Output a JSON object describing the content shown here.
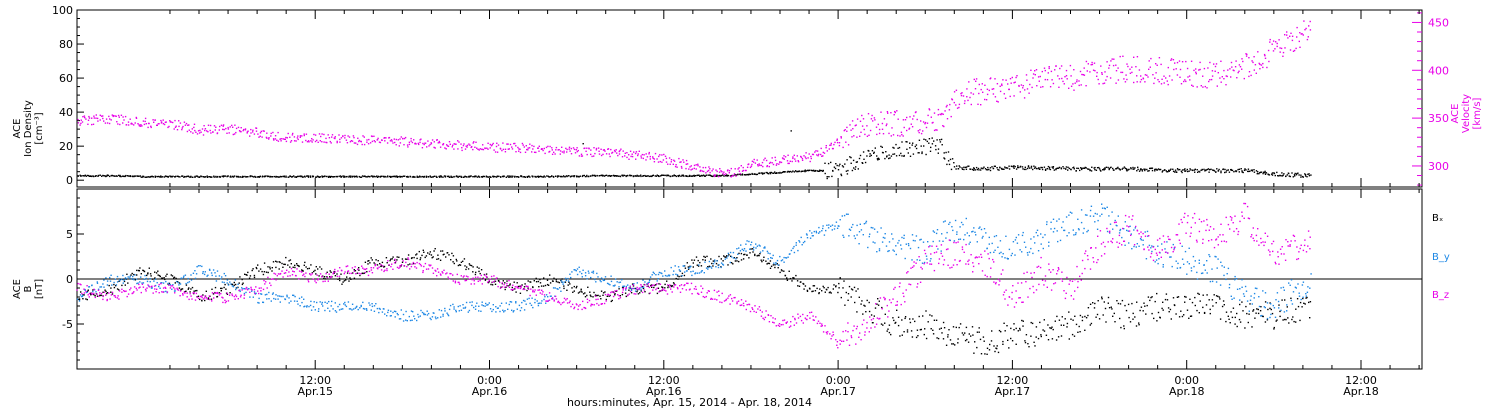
{
  "chart_data": [
    {
      "type": "scatter",
      "title": "",
      "x_axis": {
        "label": "hours:minutes, Apr. 15, 2014 - Apr. 18, 2014",
        "range_hours": [
          -4.4,
          88.2
        ],
        "ticks": [
          {
            "hours": 12,
            "time": "12:00",
            "date": "Apr.15"
          },
          {
            "hours": 24,
            "time": "0:00",
            "date": "Apr.16"
          },
          {
            "hours": 36,
            "time": "12:00",
            "date": "Apr.16"
          },
          {
            "hours": 48,
            "time": "0:00",
            "date": "Apr.17"
          },
          {
            "hours": 60,
            "time": "12:00",
            "date": "Apr.17"
          },
          {
            "hours": 72,
            "time": "0:00",
            "date": "Apr.18"
          },
          {
            "hours": 84,
            "time": "12:00",
            "date": "Apr.18"
          }
        ]
      },
      "y_left": {
        "label_lines": [
          "ACE",
          "Ion Density",
          "[cm⁻³]"
        ],
        "ylim": [
          -4,
          100
        ],
        "ticks": [
          0,
          20,
          40,
          60,
          80,
          100
        ],
        "color": "#000000"
      },
      "y_right": {
        "label_lines": [
          "ACE",
          "Velocity",
          "[km/s]"
        ],
        "ylim": [
          278,
          463
        ],
        "ticks": [
          300,
          350,
          400,
          450
        ],
        "color": "#e800e8"
      },
      "series": [
        {
          "axis": "left",
          "color": "#000000",
          "x_hours": [
            -4.4,
            -2,
            0,
            4,
            8,
            12,
            16,
            20,
            24,
            28,
            32,
            36,
            40,
            42,
            44,
            46,
            47,
            48,
            49,
            50,
            51,
            52,
            53,
            54,
            55,
            55.5,
            56,
            58,
            60,
            64,
            68,
            72,
            76,
            78,
            80.5
          ],
          "values": [
            3,
            3,
            2.5,
            2.5,
            2.5,
            2.5,
            2.5,
            2.5,
            2.5,
            2.5,
            3,
            3,
            3,
            4,
            5,
            6,
            6,
            7,
            10,
            14,
            16,
            18,
            19,
            20,
            21,
            14,
            8,
            7,
            8,
            7,
            7,
            6,
            6,
            4,
            3
          ]
        },
        {
          "axis": "right",
          "color": "#e800e8",
          "x_hours": [
            -4.4,
            -2,
            0,
            2,
            4,
            6,
            8,
            10,
            12,
            14,
            16,
            18,
            20,
            22,
            24,
            26,
            28,
            30,
            32,
            34,
            36,
            38,
            39.5,
            41,
            42,
            44,
            46,
            47.5,
            48.5,
            50,
            52,
            54,
            55.5,
            56.5,
            58,
            60,
            62,
            64,
            66,
            68,
            70,
            72,
            74,
            75,
            77,
            78.5,
            80.5
          ],
          "values": [
            348,
            350,
            346,
            345,
            338,
            339,
            336,
            330,
            330,
            328,
            328,
            326,
            324,
            322,
            320,
            320,
            318,
            316,
            315,
            312,
            308,
            300,
            293,
            294,
            303,
            306,
            310,
            320,
            333,
            345,
            345,
            346,
            355,
            378,
            378,
            382,
            392,
            392,
            400,
            402,
            400,
            398,
            395,
            400,
            410,
            428,
            442
          ]
        }
      ]
    },
    {
      "type": "scatter",
      "title": "",
      "x_axis": {
        "label": "hours:minutes, Apr. 15, 2014 - Apr. 18, 2014",
        "range_hours": [
          -4.4,
          88.2
        ],
        "ticks": [
          {
            "hours": 12,
            "time": "12:00",
            "date": "Apr.15"
          },
          {
            "hours": 24,
            "time": "0:00",
            "date": "Apr.16"
          },
          {
            "hours": 36,
            "time": "12:00",
            "date": "Apr.16"
          },
          {
            "hours": 48,
            "time": "0:00",
            "date": "Apr.17"
          },
          {
            "hours": 60,
            "time": "12:00",
            "date": "Apr.17"
          },
          {
            "hours": 72,
            "time": "0:00",
            "date": "Apr.18"
          },
          {
            "hours": 84,
            "time": "12:00",
            "date": "Apr.18"
          }
        ]
      },
      "y_left": {
        "label_lines": [
          "ACE",
          "B",
          "[nT]"
        ],
        "ylim": [
          -10,
          10
        ],
        "ticks": [
          -5,
          0,
          5
        ]
      },
      "zero_line": 0,
      "legend": {
        "placement": "right"
      },
      "series": [
        {
          "name": "Bₓ",
          "color": "#000000",
          "x_hours": [
            -4.4,
            -2,
            0,
            2,
            4,
            6,
            8,
            10,
            12,
            14,
            16,
            18,
            20,
            22,
            24,
            26,
            28,
            30,
            32,
            34,
            36,
            38,
            40,
            42,
            44,
            46,
            48,
            50,
            52,
            54,
            56,
            58,
            60,
            62,
            64,
            66,
            68,
            70,
            72,
            74,
            76,
            78,
            80.5
          ],
          "values": [
            -2,
            -1,
            1,
            0,
            -2,
            -1,
            1,
            2,
            1,
            0,
            2,
            2,
            3,
            2,
            0,
            -1,
            0,
            -1,
            -2,
            -1,
            -1,
            2,
            2,
            3,
            1,
            -1,
            -1,
            -3,
            -5,
            -5,
            -6,
            -7,
            -6,
            -6,
            -5,
            -3,
            -4,
            -3,
            -3,
            -3,
            -4,
            -4,
            -3
          ]
        },
        {
          "name": "B_y",
          "color": "#1e88e5",
          "x_hours": [
            -4.4,
            -2,
            0,
            2,
            4,
            6,
            8,
            10,
            12,
            14,
            16,
            18,
            20,
            22,
            24,
            26,
            28,
            30,
            32,
            34,
            36,
            38,
            40,
            42,
            44,
            46,
            48,
            50,
            52,
            54,
            56,
            58,
            60,
            62,
            64,
            66,
            68,
            70,
            72,
            74,
            76,
            78,
            80.5
          ],
          "values": [
            -2,
            0,
            0,
            -1,
            1,
            0,
            -2,
            -2,
            -3,
            -3,
            -3,
            -4,
            -4,
            -3,
            -3,
            -3,
            -2,
            1,
            0,
            -1,
            1,
            1,
            2,
            4,
            2,
            5,
            6,
            5,
            4,
            3,
            6,
            5,
            3,
            5,
            6,
            7,
            5,
            3,
            2,
            1,
            -2,
            -3,
            0
          ]
        },
        {
          "name": "B_z",
          "color": "#e800e8",
          "x_hours": [
            -4.4,
            -2,
            0,
            2,
            4,
            6,
            8,
            10,
            12,
            14,
            16,
            18,
            20,
            22,
            24,
            26,
            28,
            30,
            32,
            34,
            36,
            38,
            40,
            42,
            44,
            46,
            48,
            50,
            52,
            54,
            56,
            58,
            60,
            62,
            64,
            66,
            68,
            70,
            72,
            74,
            76,
            78,
            80.5
          ],
          "values": [
            -1,
            -2,
            -1,
            -1,
            -2,
            -2,
            -1,
            1,
            0,
            1,
            1,
            2,
            1,
            0,
            0,
            -1,
            -2,
            -3,
            -2,
            -1,
            -1,
            -1,
            -2,
            -3,
            -5,
            -4,
            -7,
            -5,
            -2,
            2,
            3,
            2,
            -2,
            1,
            -1,
            4,
            6,
            3,
            6,
            5,
            7,
            3,
            4
          ]
        }
      ]
    }
  ]
}
